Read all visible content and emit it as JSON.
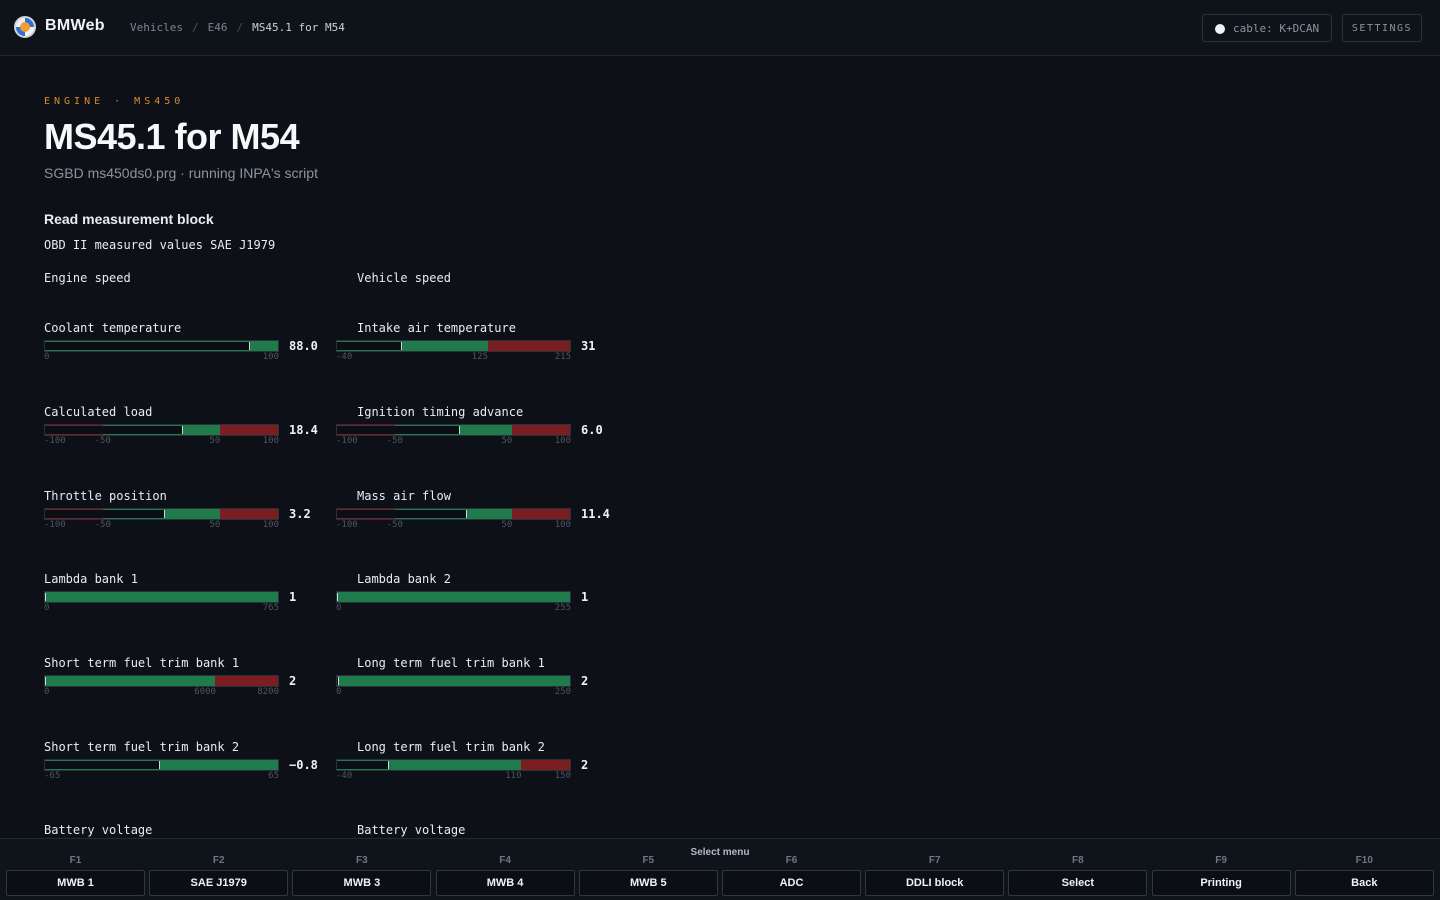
{
  "app": {
    "name": "BMWeb"
  },
  "breadcrumbs": [
    {
      "label": "Vehicles"
    },
    {
      "label": "E46"
    },
    {
      "label": "MS45.1 for M54"
    }
  ],
  "header": {
    "cable_label": "cable: K+DCAN",
    "settings_label": "SETTINGS"
  },
  "page": {
    "eyebrow": "ENGINE · MS450",
    "title": "MS45.1 for M54",
    "subtitle": "SGBD ms450ds0.prg · running INPA's script",
    "section_title": "Read measurement block",
    "section_subtitle": "OBD II measured values SAE J1979"
  },
  "colors": {
    "green": "#1f7a4c",
    "red": "#7a1e22",
    "accent": "#d98a2b"
  },
  "measurements": [
    {
      "label": "Engine speed"
    },
    {
      "label": "Vehicle speed"
    },
    {
      "label": "Coolant temperature",
      "value": "88.0",
      "min": 0,
      "max": 100,
      "ticks": [
        "0",
        "100"
      ],
      "zones": [
        {
          "from": 0,
          "to": 100,
          "color": "green"
        }
      ]
    },
    {
      "label": "Intake air temperature",
      "value": "31",
      "min": -40,
      "max": 215,
      "ticks": [
        "-40",
        "125",
        "215"
      ],
      "zones": [
        {
          "from": -40,
          "to": 125,
          "color": "green"
        },
        {
          "from": 125,
          "to": 215,
          "color": "red"
        }
      ]
    },
    {
      "label": "Calculated load",
      "value": "18.4",
      "min": -100,
      "max": 100,
      "ticks": [
        "-100",
        "-50",
        "50",
        "100"
      ],
      "zones": [
        {
          "from": -100,
          "to": -50,
          "color": "red"
        },
        {
          "from": -50,
          "to": 50,
          "color": "green"
        },
        {
          "from": 50,
          "to": 100,
          "color": "red"
        }
      ]
    },
    {
      "label": "Ignition timing advance",
      "value": "6.0",
      "min": -100,
      "max": 100,
      "ticks": [
        "-100",
        "-50",
        "50",
        "100"
      ],
      "zones": [
        {
          "from": -100,
          "to": -50,
          "color": "red"
        },
        {
          "from": -50,
          "to": 50,
          "color": "green"
        },
        {
          "from": 50,
          "to": 100,
          "color": "red"
        }
      ]
    },
    {
      "label": "Throttle position",
      "value": "3.2",
      "min": -100,
      "max": 100,
      "ticks": [
        "-100",
        "-50",
        "50",
        "100"
      ],
      "zones": [
        {
          "from": -100,
          "to": -50,
          "color": "red"
        },
        {
          "from": -50,
          "to": 50,
          "color": "green"
        },
        {
          "from": 50,
          "to": 100,
          "color": "red"
        }
      ]
    },
    {
      "label": "Mass air flow",
      "value": "11.4",
      "min": -100,
      "max": 100,
      "ticks": [
        "-100",
        "-50",
        "50",
        "100"
      ],
      "zones": [
        {
          "from": -100,
          "to": -50,
          "color": "red"
        },
        {
          "from": -50,
          "to": 50,
          "color": "green"
        },
        {
          "from": 50,
          "to": 100,
          "color": "red"
        }
      ]
    },
    {
      "label": "Lambda bank 1",
      "value": "1",
      "min": 0,
      "max": 765,
      "ticks": [
        "0",
        "765"
      ],
      "zones": [
        {
          "from": 0,
          "to": 765,
          "color": "green"
        }
      ]
    },
    {
      "label": "Lambda bank 2",
      "value": "1",
      "min": 0,
      "max": 255,
      "ticks": [
        "0",
        "255"
      ],
      "zones": [
        {
          "from": 0,
          "to": 255,
          "color": "green"
        }
      ]
    },
    {
      "label": "Short term fuel trim bank 1",
      "value": "2",
      "min": 0,
      "max": 8200,
      "ticks": [
        "0",
        "6000",
        "8200"
      ],
      "zones": [
        {
          "from": 0,
          "to": 6000,
          "color": "green"
        },
        {
          "from": 6000,
          "to": 8200,
          "color": "red"
        }
      ]
    },
    {
      "label": "Long term fuel trim bank 1",
      "value": "2",
      "min": 0,
      "max": 250,
      "ticks": [
        "0",
        "250"
      ],
      "zones": [
        {
          "from": 0,
          "to": 250,
          "color": "green"
        }
      ]
    },
    {
      "label": "Short term fuel trim bank 2",
      "value": "−0.8",
      "min": -65,
      "max": 65,
      "ticks": [
        "-65",
        "65"
      ],
      "zones": [
        {
          "from": -65,
          "to": 65,
          "color": "green"
        }
      ]
    },
    {
      "label": "Long term fuel trim bank 2",
      "value": "2",
      "min": -40,
      "max": 150,
      "ticks": [
        "-40",
        "110",
        "150"
      ],
      "zones": [
        {
          "from": -40,
          "to": 110,
          "color": "green"
        },
        {
          "from": 110,
          "to": 150,
          "color": "red"
        }
      ]
    },
    {
      "label": "Battery voltage"
    },
    {
      "label": "Battery voltage"
    }
  ],
  "function_bar": {
    "title": "Select menu",
    "keys": [
      {
        "key": "F1",
        "label": "MWB 1"
      },
      {
        "key": "F2",
        "label": "SAE J1979"
      },
      {
        "key": "F3",
        "label": "MWB 3"
      },
      {
        "key": "F4",
        "label": "MWB 4"
      },
      {
        "key": "F5",
        "label": "MWB 5"
      },
      {
        "key": "F6",
        "label": "ADC"
      },
      {
        "key": "F7",
        "label": "DDLI block"
      },
      {
        "key": "F8",
        "label": "Select"
      },
      {
        "key": "F9",
        "label": "Printing"
      },
      {
        "key": "F10",
        "label": "Back"
      }
    ]
  }
}
